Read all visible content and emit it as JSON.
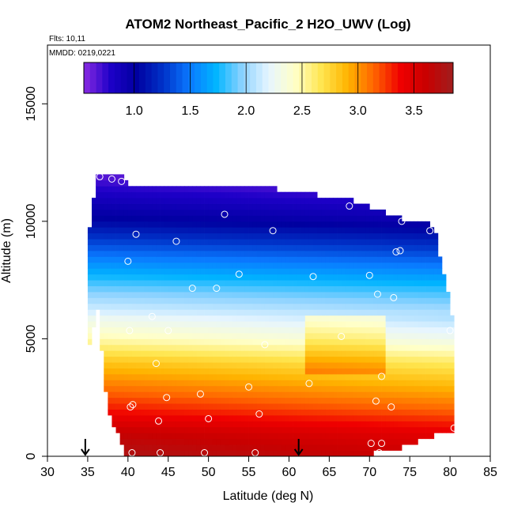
{
  "chart_data": {
    "type": "heatmap",
    "title": "ATOM2 Northeast_Pacific_2 H2O_UWV (Log)",
    "flights": "Flts: 10,11",
    "dates": "MMDD: 0219,0221",
    "xlabel": "Latitude (deg N)",
    "ylabel": "Altitude (m)",
    "xlim": [
      30,
      85
    ],
    "ylim": [
      0,
      17500
    ],
    "xticks": [
      30,
      35,
      40,
      45,
      50,
      55,
      60,
      65,
      70,
      75,
      80,
      85
    ],
    "xtick_labels": [
      "30",
      "35",
      "40",
      "45",
      "50",
      "55",
      "60",
      "65",
      "70",
      "75",
      "80",
      "85"
    ],
    "yticks": [
      0,
      5000,
      10000,
      15000
    ],
    "ytick_labels": [
      "0",
      "5000",
      "10000",
      "15000"
    ],
    "colorbar": {
      "min": 0.55,
      "max": 3.85,
      "ticks": [
        1.0,
        1.5,
        2.0,
        2.5,
        3.0,
        3.5
      ],
      "tick_labels": [
        "1.0",
        "1.5",
        "2.0",
        "2.5",
        "3.0",
        "3.5"
      ],
      "colors": [
        "#8a2be2",
        "#1e00c8",
        "#0000a0",
        "#0032c8",
        "#0a78ff",
        "#00b4ff",
        "#8cd2ff",
        "#e6f5ff",
        "#ffffc8",
        "#ffe650",
        "#ffb400",
        "#ff6400",
        "#f00000",
        "#c80000",
        "#a01e1e"
      ]
    },
    "profile": [
      {
        "alt": 0,
        "value": 3.7
      },
      {
        "alt": 1000,
        "value": 3.55
      },
      {
        "alt": 2000,
        "value": 3.25
      },
      {
        "alt": 3000,
        "value": 3.0
      },
      {
        "alt": 4000,
        "value": 2.75
      },
      {
        "alt": 5000,
        "value": 2.4
      },
      {
        "alt": 6000,
        "value": 2.15
      },
      {
        "alt": 7000,
        "value": 1.9
      },
      {
        "alt": 8000,
        "value": 1.6
      },
      {
        "alt": 9000,
        "value": 1.3
      },
      {
        "alt": 10000,
        "value": 1.0
      },
      {
        "alt": 11000,
        "value": 0.8
      },
      {
        "alt": 12000,
        "value": 0.6
      }
    ],
    "boundary": [
      {
        "lat": 36.2,
        "alt_top": 12000,
        "alt_bottom": 6500
      },
      {
        "lat": 35.0,
        "alt_top": 9000,
        "alt_bottom": 4500
      },
      {
        "lat": 37.5,
        "alt_top": 12000,
        "alt_bottom": 2000
      },
      {
        "lat": 39.5,
        "alt_top": 12000,
        "alt_bottom": 400
      },
      {
        "lat": 40.0,
        "alt_top": 11500,
        "alt_bottom": 0
      },
      {
        "lat": 53.5,
        "alt_top": 11500,
        "alt_bottom": 0
      },
      {
        "lat": 67.5,
        "alt_top": 10800,
        "alt_bottom": 0
      },
      {
        "lat": 74.0,
        "alt_top": 10000,
        "alt_bottom": 500
      },
      {
        "lat": 78.0,
        "alt_top": 9700,
        "alt_bottom": 1000
      },
      {
        "lat": 80.5,
        "alt_top": 5500,
        "alt_bottom": 1000
      }
    ],
    "points": [
      {
        "lat": 36.5,
        "alt": 11900
      },
      {
        "lat": 38.0,
        "alt": 11800
      },
      {
        "lat": 39.2,
        "alt": 11700
      },
      {
        "lat": 52.0,
        "alt": 10300
      },
      {
        "lat": 67.5,
        "alt": 10650
      },
      {
        "lat": 74.0,
        "alt": 10000
      },
      {
        "lat": 77.5,
        "alt": 9600
      },
      {
        "lat": 58.0,
        "alt": 9600
      },
      {
        "lat": 41.0,
        "alt": 9450
      },
      {
        "lat": 46.0,
        "alt": 9150
      },
      {
        "lat": 73.3,
        "alt": 8700
      },
      {
        "lat": 73.8,
        "alt": 8750
      },
      {
        "lat": 40.0,
        "alt": 8300
      },
      {
        "lat": 53.8,
        "alt": 7750
      },
      {
        "lat": 63.0,
        "alt": 7650
      },
      {
        "lat": 70.0,
        "alt": 7700
      },
      {
        "lat": 48.0,
        "alt": 7150
      },
      {
        "lat": 51.0,
        "alt": 7150
      },
      {
        "lat": 71.0,
        "alt": 6900
      },
      {
        "lat": 73.0,
        "alt": 6750
      },
      {
        "lat": 43.0,
        "alt": 5950
      },
      {
        "lat": 40.2,
        "alt": 5350
      },
      {
        "lat": 45.0,
        "alt": 5350
      },
      {
        "lat": 80.0,
        "alt": 5350
      },
      {
        "lat": 66.5,
        "alt": 5100
      },
      {
        "lat": 57.0,
        "alt": 4750
      },
      {
        "lat": 43.5,
        "alt": 3950
      },
      {
        "lat": 71.5,
        "alt": 3400
      },
      {
        "lat": 62.5,
        "alt": 3100
      },
      {
        "lat": 55.0,
        "alt": 2950
      },
      {
        "lat": 49.0,
        "alt": 2650
      },
      {
        "lat": 44.8,
        "alt": 2500
      },
      {
        "lat": 70.8,
        "alt": 2350
      },
      {
        "lat": 40.6,
        "alt": 2200
      },
      {
        "lat": 40.3,
        "alt": 2100
      },
      {
        "lat": 72.7,
        "alt": 2100
      },
      {
        "lat": 56.3,
        "alt": 1800
      },
      {
        "lat": 50.0,
        "alt": 1600
      },
      {
        "lat": 43.8,
        "alt": 1500
      },
      {
        "lat": 80.5,
        "alt": 1200
      },
      {
        "lat": 70.2,
        "alt": 550
      },
      {
        "lat": 71.5,
        "alt": 550
      },
      {
        "lat": 40.5,
        "alt": 150
      },
      {
        "lat": 44.0,
        "alt": 150
      },
      {
        "lat": 49.5,
        "alt": 150
      },
      {
        "lat": 55.8,
        "alt": 150
      },
      {
        "lat": 71.2,
        "alt": 150
      }
    ],
    "arrows": [
      34.7,
      61.2
    ]
  }
}
